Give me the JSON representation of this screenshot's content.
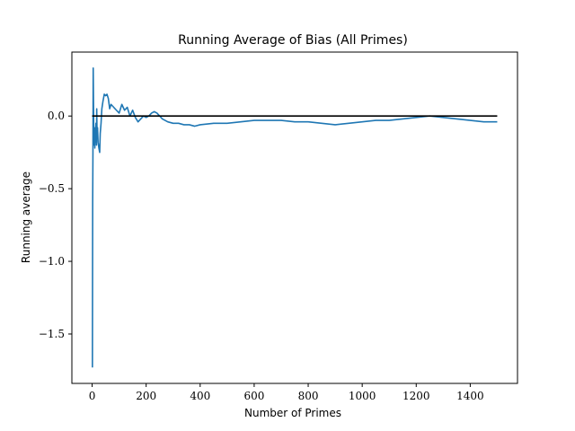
{
  "chart_data": {
    "type": "line",
    "title": "Running Average of Bias (All Primes)",
    "xlabel": "Number of Primes",
    "ylabel": "Running average",
    "xlim": [
      -75,
      1575
    ],
    "ylim": [
      -1.84,
      0.44
    ],
    "xticks": [
      0,
      200,
      400,
      600,
      800,
      1000,
      1200,
      1400
    ],
    "yticks": [
      -1.5,
      -1.0,
      -0.5,
      0.0
    ],
    "xtick_labels": [
      "0",
      "200",
      "400",
      "600",
      "800",
      "1000",
      "1200",
      "1400"
    ],
    "ytick_labels": [
      "−1.5",
      "−1.0",
      "−0.5",
      "0.0"
    ],
    "grid": false,
    "series": [
      {
        "color": "#1f77b4",
        "x": [
          1,
          2,
          3,
          4,
          5,
          6,
          7,
          8,
          9,
          10,
          11,
          12,
          13,
          14,
          15,
          16,
          17,
          18,
          19,
          20,
          22,
          25,
          28,
          30,
          33,
          36,
          40,
          45,
          50,
          55,
          60,
          65,
          70,
          80,
          90,
          100,
          110,
          120,
          130,
          140,
          150,
          160,
          170,
          180,
          190,
          200,
          210,
          220,
          230,
          240,
          250,
          260,
          280,
          300,
          320,
          340,
          360,
          380,
          400,
          450,
          500,
          550,
          600,
          650,
          700,
          750,
          800,
          850,
          900,
          950,
          1000,
          1050,
          1100,
          1150,
          1200,
          1250,
          1300,
          1350,
          1400,
          1450,
          1500
        ],
        "y": [
          -1.73,
          -0.6,
          -0.25,
          0.33,
          0.1,
          -0.1,
          -0.2,
          -0.15,
          -0.12,
          -0.22,
          -0.08,
          -0.18,
          -0.1,
          -0.05,
          -0.12,
          -0.2,
          0.05,
          -0.1,
          -0.15,
          -0.08,
          -0.18,
          -0.22,
          -0.25,
          -0.12,
          -0.05,
          0.05,
          0.1,
          0.15,
          0.14,
          0.15,
          0.12,
          0.05,
          0.08,
          0.06,
          0.04,
          0.02,
          0.08,
          0.04,
          0.06,
          0.0,
          0.04,
          -0.01,
          -0.04,
          -0.02,
          0.0,
          -0.01,
          0.0,
          0.02,
          0.03,
          0.02,
          0.0,
          -0.02,
          -0.04,
          -0.05,
          -0.05,
          -0.06,
          -0.06,
          -0.07,
          -0.06,
          -0.05,
          -0.05,
          -0.04,
          -0.03,
          -0.03,
          -0.03,
          -0.04,
          -0.04,
          -0.05,
          -0.06,
          -0.05,
          -0.04,
          -0.03,
          -0.03,
          -0.02,
          -0.01,
          0.0,
          -0.01,
          -0.02,
          -0.03,
          -0.04,
          -0.04
        ]
      },
      {
        "color": "#000000",
        "x": [
          0,
          1500
        ],
        "y": [
          0,
          0
        ]
      }
    ]
  }
}
